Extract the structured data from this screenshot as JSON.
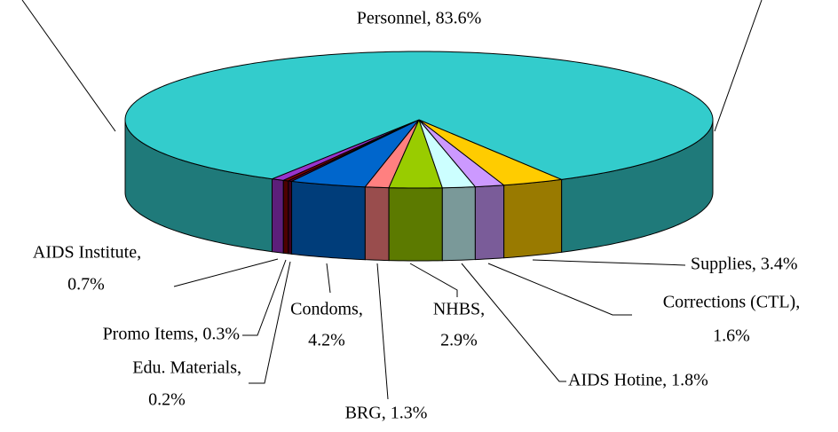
{
  "chart_data": {
    "type": "pie3d",
    "categories": [
      "AIDS Institute",
      "Promo Items",
      "Edu. Materials",
      "Condoms",
      "BRG",
      "NHBS",
      "AIDS Hotine",
      "Corrections (CTL)",
      "Supplies",
      "Personnel"
    ],
    "values": [
      0.7,
      0.3,
      0.2,
      4.2,
      1.3,
      2.9,
      1.8,
      1.6,
      3.4,
      83.6
    ],
    "value_labels": [
      [
        "AIDS Institute,",
        "0.7%"
      ],
      [
        "Promo Items, 0.3%"
      ],
      [
        "Edu. Materials,",
        "0.2%"
      ],
      [
        "Condoms,",
        "4.2%"
      ],
      [
        "BRG, 1.3%"
      ],
      [
        "NHBS,",
        "2.9%"
      ],
      [
        "AIDS Hotine, 1.8%"
      ],
      [
        "Corrections (CTL),",
        "1.6%"
      ],
      [
        "Supplies, 3.4%"
      ],
      [
        "Personnel, 83.6%"
      ]
    ],
    "colors": [
      "#9933cc",
      "#800000",
      "#660033",
      "#0066cc",
      "#ff8080",
      "#99cc00",
      "#ccffff",
      "#cc99ff",
      "#ffcc00",
      "#33cccc"
    ]
  }
}
